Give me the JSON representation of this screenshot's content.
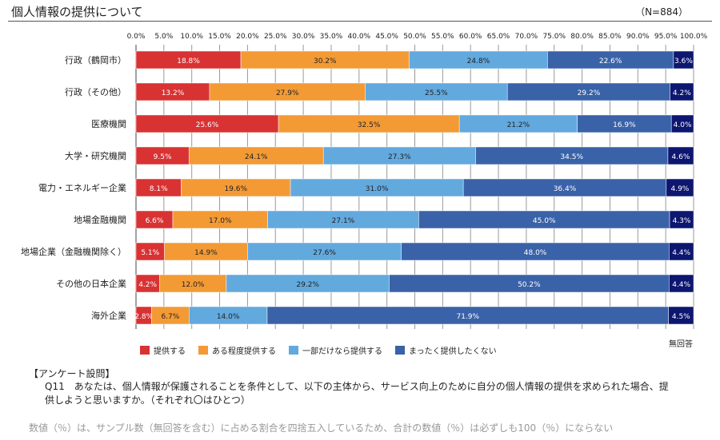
{
  "title": "個人情報の提供について",
  "n_label": "（N=884）",
  "chart_data": {
    "type": "bar",
    "orientation": "horizontal-stacked-100",
    "xlim": [
      0,
      100
    ],
    "x_ticks": [
      "0.0%",
      "5.0%",
      "10.0%",
      "15.0%",
      "20.0%",
      "25.0%",
      "30.0%",
      "35.0%",
      "40.0%",
      "45.0%",
      "50.0%",
      "55.0%",
      "60.0%",
      "65.0%",
      "70.0%",
      "75.0%",
      "80.0%",
      "85.0%",
      "90.0%",
      "95.0%",
      "100.0%"
    ],
    "categories": [
      "行政（鶴岡市）",
      "行政（その他）",
      "医療機関",
      "大学・研究機関",
      "電力・エネルギー企業",
      "地場金融機関",
      "地場企業（金融機関除く）",
      "その他の日本企業",
      "海外企業"
    ],
    "series": [
      {
        "name": "提供する",
        "color": "#d93233",
        "values": [
          18.8,
          13.2,
          25.6,
          9.5,
          8.1,
          6.6,
          5.1,
          4.2,
          2.8
        ]
      },
      {
        "name": "ある程度提供する",
        "color": "#f39a35",
        "values": [
          30.2,
          27.9,
          32.5,
          24.1,
          19.6,
          17.0,
          14.9,
          12.0,
          6.7
        ]
      },
      {
        "name": "一部だけなら提供する",
        "color": "#62a9de",
        "values": [
          24.8,
          25.5,
          21.2,
          27.3,
          31.0,
          27.1,
          27.6,
          29.2,
          14.0
        ]
      },
      {
        "name": "まったく提供したくない",
        "color": "#3a62a8",
        "values": [
          22.6,
          29.2,
          16.9,
          34.5,
          36.4,
          45.0,
          48.0,
          50.2,
          71.9
        ]
      },
      {
        "name": "無回答",
        "color": "#0d1670",
        "values": [
          3.6,
          4.2,
          4.0,
          4.6,
          4.9,
          4.3,
          4.4,
          4.4,
          4.5
        ]
      }
    ],
    "grid": true,
    "legend_position": "bottom"
  },
  "legend_noans": "無回答",
  "survey_heading": "【アンケート設問】",
  "question": "Q11　あなたは、個人情報が保護されることを条件として、以下の主体から、サービス向上のために自分の個人情報の提供を求められた場合、提供しようと思いますか。（それぞれ〇はひとつ）",
  "note": "数値（％）は、サンプル数（無回答を含む）に占める割合を四捨五入しているため、合計の数値（％）は必ずしも100（％）にならない"
}
